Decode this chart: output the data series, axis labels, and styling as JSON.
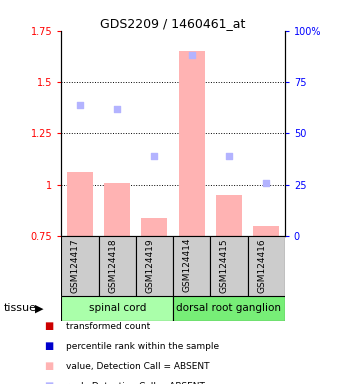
{
  "title": "GDS2209 / 1460461_at",
  "samples": [
    "GSM124417",
    "GSM124418",
    "GSM124419",
    "GSM124414",
    "GSM124415",
    "GSM124416"
  ],
  "bar_values": [
    1.06,
    1.01,
    0.84,
    1.65,
    0.95,
    0.8
  ],
  "rank_values": [
    1.39,
    1.37,
    1.14,
    1.63,
    1.14,
    1.01
  ],
  "bar_color_absent": "#ffb3b3",
  "rank_color_absent": "#b3b3ff",
  "ylim_left": [
    0.75,
    1.75
  ],
  "ylim_right": [
    0,
    100
  ],
  "yticks_left": [
    0.75,
    1.0,
    1.25,
    1.5,
    1.75
  ],
  "yticks_right": [
    0,
    25,
    50,
    75,
    100
  ],
  "ytick_labels_left": [
    "0.75",
    "1",
    "1.25",
    "1.5",
    "1.75"
  ],
  "ytick_labels_right": [
    "0",
    "25",
    "50",
    "75",
    "100%"
  ],
  "hlines": [
    1.0,
    1.25,
    1.5
  ],
  "groups": [
    {
      "label": "spinal cord",
      "indices": [
        0,
        1,
        2
      ],
      "color": "#aaffaa"
    },
    {
      "label": "dorsal root ganglion",
      "indices": [
        3,
        4,
        5
      ],
      "color": "#77ee77"
    }
  ],
  "tissue_label": "tissue",
  "sample_box_color": "#cccccc",
  "legend_items": [
    {
      "label": "transformed count",
      "color": "#cc0000"
    },
    {
      "label": "percentile rank within the sample",
      "color": "#0000cc"
    },
    {
      "label": "value, Detection Call = ABSENT",
      "color": "#ffb3b3"
    },
    {
      "label": "rank, Detection Call = ABSENT",
      "color": "#b3b3ff"
    }
  ],
  "fig_bg": "#ffffff"
}
